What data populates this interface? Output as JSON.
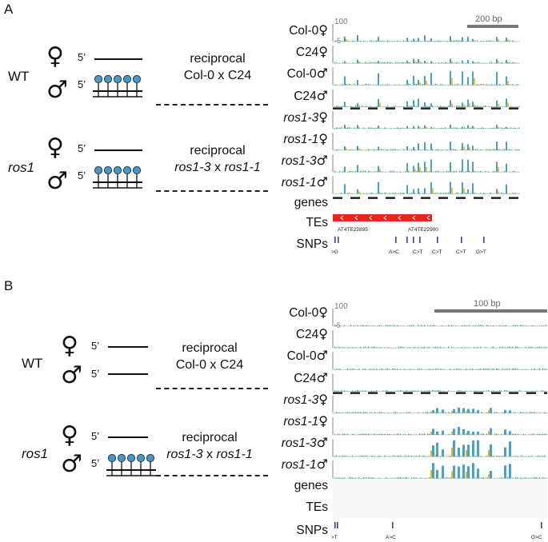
{
  "panelA": {
    "letter": "A",
    "wt": "WT",
    "ros1": "ros1",
    "female": "♀",
    "male": "♂",
    "five": "5’",
    "cross1": {
      "line1": "reciprocal",
      "line2": "Col-0 x C24"
    },
    "cross2": {
      "line1": "reciprocal",
      "line2a": "ros1-3",
      "line2b": " x ",
      "line2c": "ros1-1"
    },
    "tracks": [
      {
        "name": "Col-0",
        "sex": "♀",
        "italic": false
      },
      {
        "name": "C24",
        "sex": "♀",
        "italic": false
      },
      {
        "name": "Col-0",
        "sex": "♂",
        "italic": false
      },
      {
        "name": "C24",
        "sex": "♂",
        "italic": false
      },
      {
        "name": "ros1-3",
        "sex": "♀",
        "italic": true
      },
      {
        "name": "ros1-1",
        "sex": "♀",
        "italic": true
      },
      {
        "name": "ros1-3",
        "sex": "♂",
        "italic": true
      },
      {
        "name": "ros1-1",
        "sex": "♂",
        "italic": true
      }
    ],
    "axis_top": "100",
    "axis_bottom": "-5",
    "scale": "200 bp",
    "genes": "genes",
    "tes": "TEs",
    "snps": "SNPs",
    "te_names": [
      "AT4TE22895",
      "AT4TE22900"
    ],
    "snp_labels": [
      ">G",
      "A>C",
      "C>T",
      "C>T",
      "C>T",
      "G>T"
    ]
  },
  "panelB": {
    "letter": "B",
    "wt": "WT",
    "ros1": "ros1",
    "female": "♀",
    "male": "♂",
    "five": "5’",
    "cross1": {
      "line1": "reciprocal",
      "line2": "Col-0 x C24"
    },
    "cross2": {
      "line1": "reciprocal",
      "line2a": "ros1-3",
      "line2b": " x ",
      "line2c": "ros1-1"
    },
    "tracks": [
      {
        "name": "Col-0",
        "sex": "♀",
        "italic": false
      },
      {
        "name": "C24",
        "sex": "♀",
        "italic": false
      },
      {
        "name": "Col-0",
        "sex": "♂",
        "italic": false
      },
      {
        "name": "C24",
        "sex": "♂",
        "italic": false
      },
      {
        "name": "ros1-3",
        "sex": "♀",
        "italic": true
      },
      {
        "name": "ros1-1",
        "sex": "♀",
        "italic": true
      },
      {
        "name": "ros1-3",
        "sex": "♂",
        "italic": true
      },
      {
        "name": "ros1-1",
        "sex": "♂",
        "italic": true
      }
    ],
    "axis_top": "100",
    "axis_bottom": "-5",
    "scale": "100 bp",
    "genes": "genes",
    "tes": "TEs",
    "snps": "SNPs",
    "snp_labels": [
      ">T",
      "A>C",
      "G>C"
    ]
  },
  "colors": {
    "methyl": "#4aa3c7",
    "chg": "#2eaa6a",
    "chh": "#f0b020",
    "te": "#e3271d",
    "snp": "#3b3f9e",
    "dot": "#4a96c4"
  }
}
